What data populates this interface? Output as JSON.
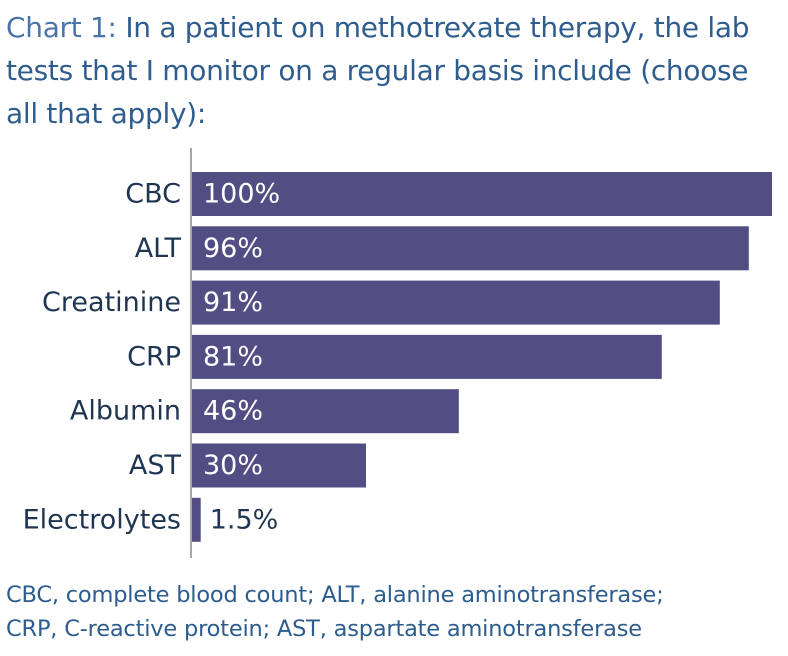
{
  "title": {
    "prefix": "Chart 1:",
    "question": "In a patient on methotrexate therapy, the lab tests that I monitor on a regular basis include (choose all that apply):"
  },
  "colors": {
    "bar": "#524e84",
    "axis": "#8a8a8a",
    "category_label": "#1f3552",
    "value_label_inside": "#ffffff",
    "value_label_outside": "#1f3552",
    "title": "#2f5d8e",
    "footnote": "#2d5c8e"
  },
  "chart_data": {
    "type": "bar",
    "orientation": "horizontal",
    "categories": [
      "CBC",
      "ALT",
      "Creatinine",
      "CRP",
      "Albumin",
      "AST",
      "Electrolytes"
    ],
    "values": [
      100,
      96,
      91,
      81,
      46,
      30,
      1.5
    ],
    "value_labels": [
      "100%",
      "96%",
      "91%",
      "81%",
      "46%",
      "30%",
      "1.5%"
    ],
    "unit": "%",
    "xlim": [
      0,
      100
    ],
    "grid": false,
    "legend": "none"
  },
  "footnote": {
    "line1": "CBC, complete blood count; ALT, alanine aminotransferase;",
    "line2": "CRP, C-reactive protein; AST, aspartate aminotransferase"
  }
}
